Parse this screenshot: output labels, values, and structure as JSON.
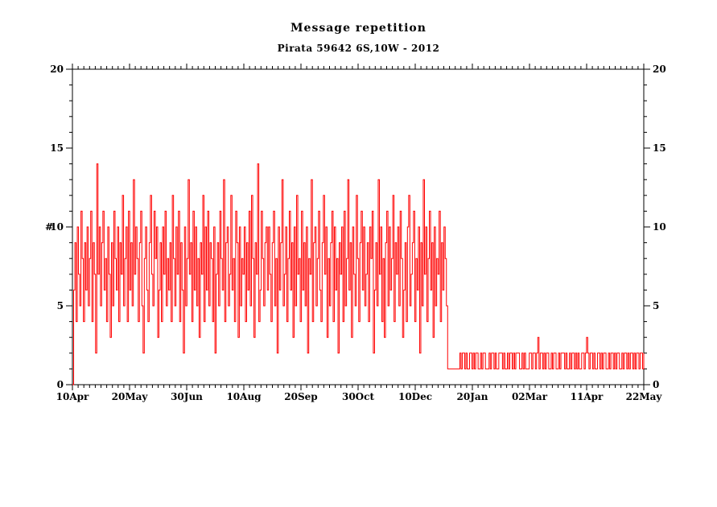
{
  "title": "Message repetition",
  "subtitle": "Pirata 59642 6S,10W - 2012",
  "colors": {
    "series": "#ff0000",
    "axis": "#000000",
    "background": "#ffffff"
  },
  "chart_data": {
    "type": "line",
    "title": "Message repetition",
    "subtitle": "Pirata 59642 6S,10W - 2012",
    "xlabel": "",
    "ylabel": "#",
    "ylim": [
      0,
      20
    ],
    "yticks_major": [
      0,
      5,
      10,
      15,
      20
    ],
    "ytick_minor_step": 1,
    "xtick_labels": [
      "10Apr",
      "20May",
      "30Jun",
      "10Aug",
      "20Sep",
      "30Oct",
      "10Dec",
      "20Jan",
      "02Mar",
      "11Apr",
      "22May"
    ],
    "x_minor_per_major": 10,
    "legend": "none",
    "grid": false,
    "series_name": "message repetitions per transmission",
    "samples": [
      0,
      6,
      9,
      4,
      10,
      7,
      5,
      11,
      8,
      4,
      9,
      6,
      10,
      5,
      8,
      11,
      4,
      9,
      7,
      2,
      14,
      7,
      10,
      5,
      9,
      11,
      6,
      8,
      4,
      10,
      7,
      3,
      9,
      5,
      11,
      8,
      6,
      10,
      4,
      9,
      7,
      12,
      5,
      8,
      10,
      4,
      11,
      6,
      9,
      5,
      13,
      7,
      10,
      8,
      4,
      9,
      11,
      5,
      2,
      8,
      10,
      6,
      4,
      9,
      12,
      7,
      5,
      11,
      8,
      10,
      3,
      6,
      9,
      4,
      10,
      7,
      11,
      5,
      8,
      6,
      9,
      4,
      12,
      8,
      5,
      10,
      7,
      11,
      4,
      9,
      6,
      2,
      10,
      5,
      8,
      13,
      7,
      9,
      4,
      11,
      6,
      10,
      5,
      8,
      3,
      9,
      7,
      12,
      4,
      10,
      6,
      11,
      5,
      9,
      8,
      4,
      10,
      2,
      7,
      9,
      5,
      11,
      8,
      6,
      13,
      4,
      9,
      10,
      5,
      7,
      12,
      6,
      8,
      4,
      11,
      9,
      3,
      10,
      5,
      8,
      7,
      10,
      4,
      9,
      6,
      11,
      5,
      12,
      8,
      3,
      9,
      7,
      14,
      4,
      6,
      11,
      8,
      5,
      9,
      10,
      6,
      10,
      7,
      4,
      9,
      11,
      5,
      8,
      2,
      10,
      6,
      9,
      13,
      5,
      7,
      10,
      4,
      8,
      11,
      6,
      9,
      3,
      10,
      5,
      12,
      7,
      8,
      4,
      11,
      6,
      9,
      5,
      10,
      2,
      8,
      7,
      13,
      4,
      9,
      10,
      5,
      8,
      11,
      6,
      4,
      9,
      12,
      7,
      10,
      3,
      8,
      5,
      9,
      11,
      4,
      10,
      6,
      8,
      2,
      9,
      7,
      10,
      4,
      11,
      5,
      8,
      13,
      6,
      9,
      3,
      10,
      7,
      5,
      12,
      8,
      4,
      9,
      11,
      6,
      10,
      5,
      7,
      9,
      4,
      10,
      8,
      11,
      2,
      6,
      9,
      5,
      13,
      7,
      10,
      4,
      8,
      3,
      9,
      11,
      5,
      10,
      6,
      8,
      12,
      4,
      9,
      7,
      10,
      5,
      11,
      8,
      3,
      6,
      9,
      4,
      10,
      12,
      5,
      7,
      9,
      11,
      4,
      8,
      6,
      10,
      2,
      9,
      5,
      13,
      7,
      10,
      4,
      8,
      11,
      6,
      9,
      3,
      10,
      5,
      8,
      7,
      11,
      4,
      9,
      6,
      10,
      8,
      5,
      1,
      1,
      1,
      1,
      1,
      1,
      1,
      1,
      1,
      1,
      2,
      1,
      2,
      2,
      1,
      2,
      1,
      1,
      2,
      2,
      1,
      2,
      1,
      2,
      2,
      1,
      1,
      2,
      1,
      2,
      2,
      1,
      1,
      1,
      2,
      1,
      2,
      2,
      1,
      2,
      1,
      1,
      2,
      2,
      2,
      1,
      2,
      1,
      1,
      2,
      1,
      2,
      2,
      1,
      2,
      1,
      2,
      2,
      2,
      1,
      1,
      2,
      1,
      2,
      1,
      1,
      1,
      2,
      2,
      1,
      2,
      2,
      1,
      2,
      3,
      1,
      2,
      2,
      1,
      2,
      1,
      2,
      2,
      1,
      1,
      2,
      1,
      2,
      2,
      1,
      1,
      2,
      1,
      2,
      2,
      2,
      1,
      2,
      1,
      1,
      2,
      1,
      2,
      2,
      1,
      2,
      1,
      2,
      1,
      1,
      2,
      2,
      1,
      2,
      3,
      2,
      1,
      2,
      2,
      1,
      2,
      1,
      1,
      2,
      2,
      1,
      2,
      1,
      2,
      2,
      1,
      1,
      2,
      1,
      2,
      2,
      1,
      2,
      1,
      2,
      2,
      1,
      1,
      2,
      1,
      2,
      2,
      1,
      2,
      1,
      2,
      2,
      1,
      2,
      1,
      2,
      2,
      1,
      2,
      2,
      1,
      2
    ]
  }
}
